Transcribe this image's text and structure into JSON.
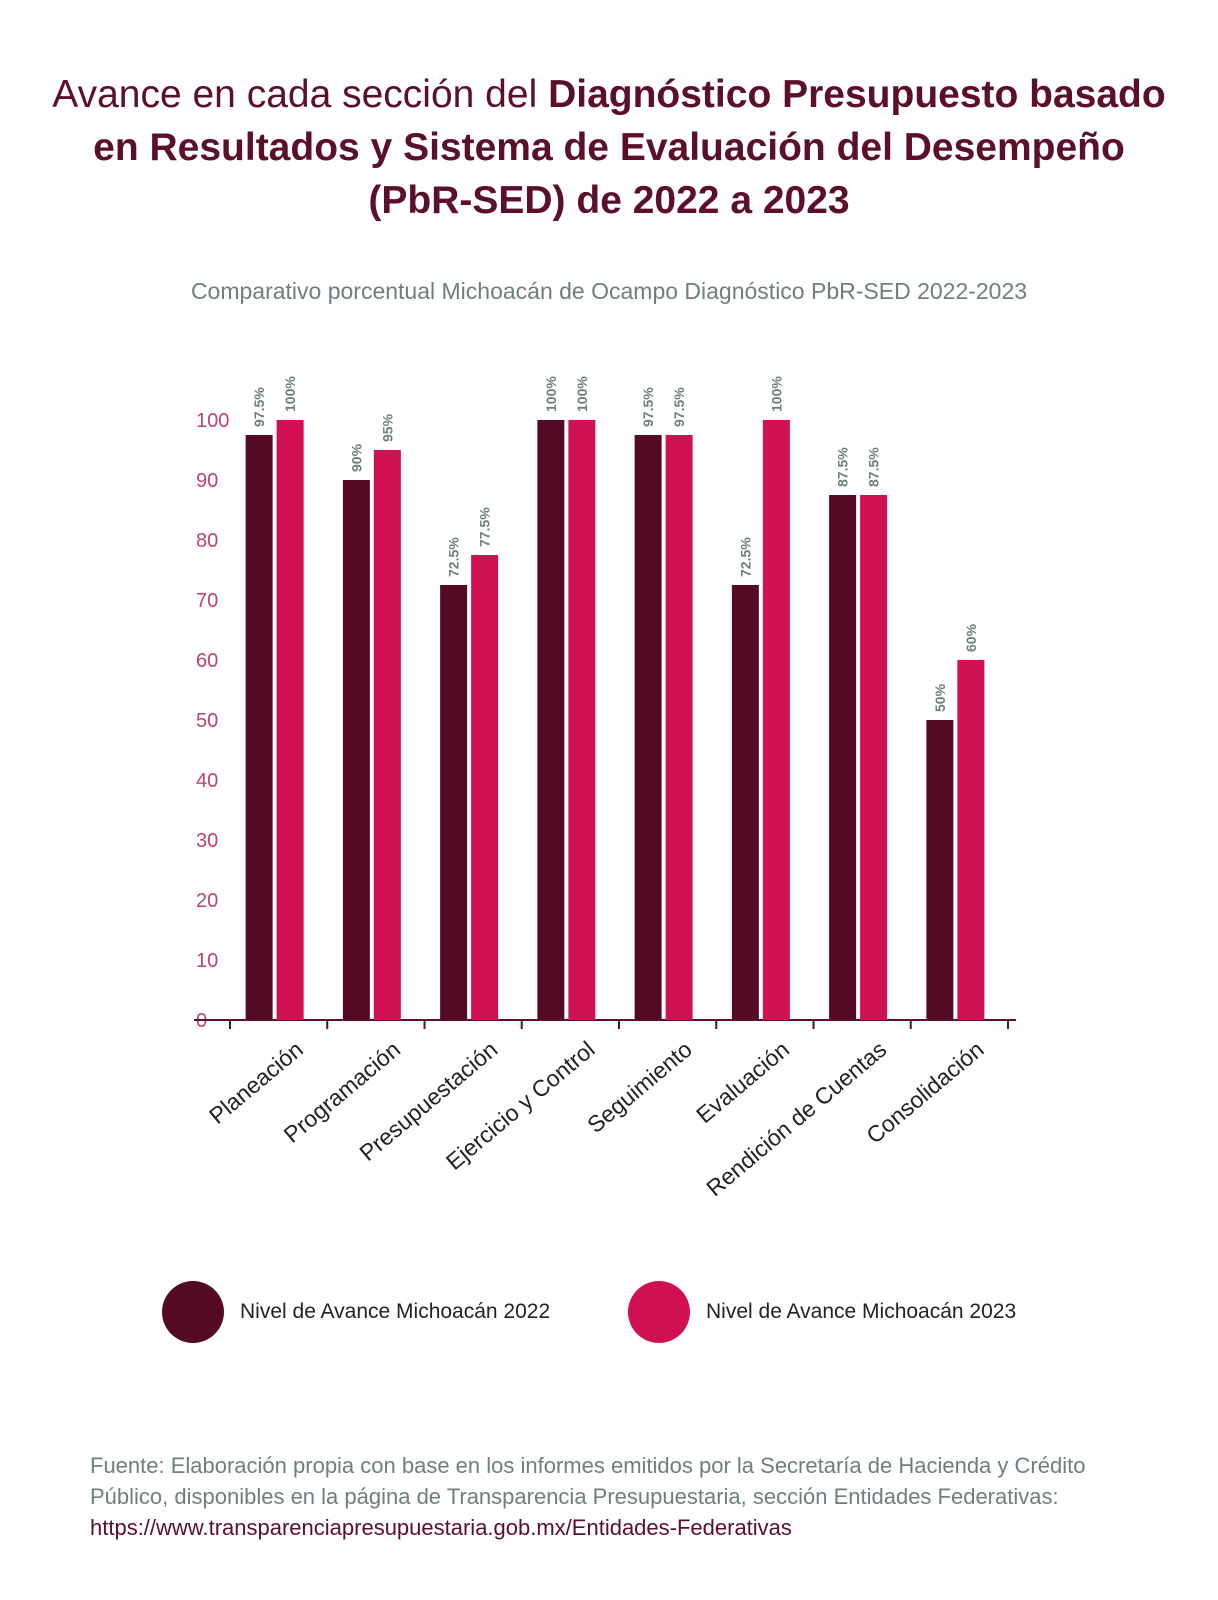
{
  "title": {
    "light": "Avance en cada sección del ",
    "bold": "Diagnóstico Presupuesto basado en Resultados y Sistema de Evaluación del Desempeño (PbR-SED)  de 2022 a 2023"
  },
  "subtitle": "Comparativo porcentual Michoacán de Ocampo Diagnóstico PbR-SED 2022-2023",
  "colors": {
    "series_2022": "#540a24",
    "series_2023": "#d1104f",
    "axis_ticks": "#c2426e",
    "data_labels": "#6f7f7b",
    "axis_line": "#5c0f2a"
  },
  "chart_data": {
    "type": "bar",
    "title": "Comparativo porcentual Michoacán de Ocampo Diagnóstico PbR-SED 2022-2023",
    "xlabel": "",
    "ylabel": "",
    "ylim": [
      0,
      100
    ],
    "yticks": [
      "0",
      "10",
      "20",
      "30",
      "40",
      "50",
      "60",
      "70",
      "80",
      "90",
      "100"
    ],
    "grid": false,
    "legend_position": "bottom",
    "categories": [
      "Planeación",
      "Programación",
      "Presupuestación",
      "Ejercicio y Control",
      "Seguimiento",
      "Evaluación",
      "Rendición de Cuentas",
      "Consolidación"
    ],
    "series": [
      {
        "name": "Nivel de Avance Michoacán 2022",
        "values": [
          97.5,
          90,
          72.5,
          100,
          97.5,
          72.5,
          87.5,
          50
        ],
        "labels": [
          "97.5%",
          "90%",
          "72.5%",
          "100%",
          "97.5%",
          "72.5%",
          "87.5%",
          "50%"
        ]
      },
      {
        "name": "Nivel de Avance Michoacán 2023",
        "values": [
          100,
          95,
          77.5,
          100,
          97.5,
          100,
          87.5,
          60
        ],
        "labels": [
          "100%",
          "95%",
          "77.5%",
          "100%",
          "97.5%",
          "100%",
          "87.5%",
          "60%"
        ]
      }
    ]
  },
  "legend": {
    "item_2022": "Nivel de Avance Michoacán 2022",
    "item_2023": "Nivel de Avance Michoacán 2023"
  },
  "source": {
    "text": "Fuente: Elaboración propia con base en los informes emitidos por la Secretaría de Hacienda y Crédito Público, disponibles en la página de Transparencia Presupuestaria, sección Entidades Federativas: ",
    "url": "https://www.transparenciapresupuestaria.gob.mx/Entidades-Federativas"
  }
}
